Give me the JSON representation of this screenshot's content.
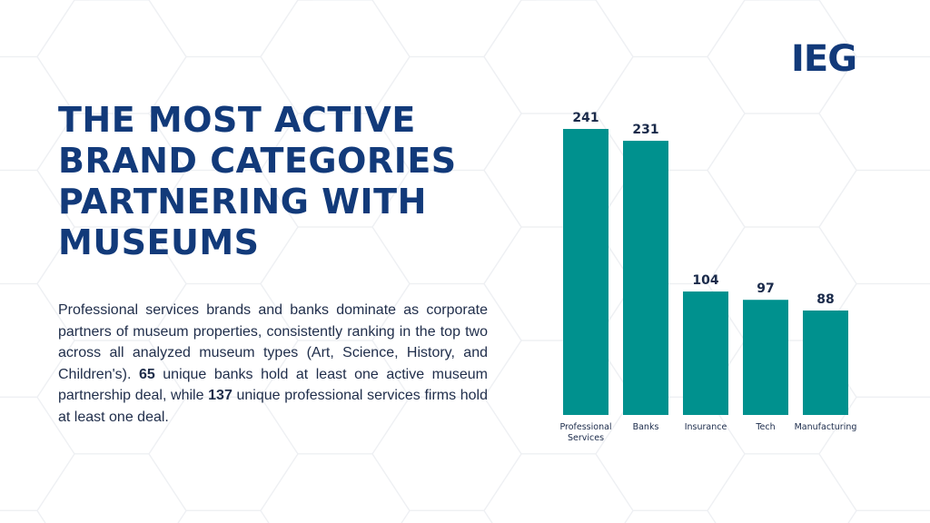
{
  "logo": "IEG",
  "title": "THE MOST ACTIVE BRAND CATEGORIES PARTNERING WITH MUSEUMS",
  "body": {
    "p1": "Professional services brands and banks dominate as corporate partners of museum properties, consistently ranking in the top two across all analyzed museum types (Art, Science, History, and Children's). ",
    "n1": "65",
    "p2": " unique banks hold at least one active museum partnership deal, while ",
    "n2": "137",
    "p3": " unique professional services firms hold at least one deal."
  },
  "colors": {
    "bar": "#00918e",
    "title": "#123a7a",
    "label": "#1a2a4a"
  },
  "chart_data": {
    "type": "bar",
    "categories": [
      "Professional Services",
      "Banks",
      "Insurance",
      "Tech",
      "Manufacturing"
    ],
    "category_lines": [
      [
        "Professional",
        "Services"
      ],
      [
        "Banks"
      ],
      [
        "Insurance"
      ],
      [
        "Tech"
      ],
      [
        "Manufacturing"
      ]
    ],
    "values": [
      241,
      231,
      104,
      97,
      88
    ],
    "data_labels": [
      "241",
      "231",
      "104",
      "97",
      "88"
    ],
    "title": "",
    "xlabel": "",
    "ylabel": "",
    "ylim": [
      0,
      241
    ],
    "grid": false
  }
}
